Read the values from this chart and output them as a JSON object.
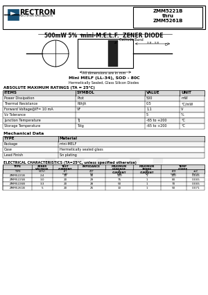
{
  "title_part": "ZMM5221B\nthru\nZMM5261B",
  "main_title": "500mW 5%  mini-M.E.L.F.  ZENER DIODE",
  "company": "RECTRON",
  "company_sub": "RECTIFIER SPECIALISTS",
  "package_type": "Mini MELF (LL-34), SOD - 80C",
  "package_sub": "Hermetically Sealed, Glass Silicon Diodes",
  "abs_max_title": "ABSOLUTE MAXIMUM RATINGS (TA = 25°C)",
  "abs_max_headers": [
    "ITEMS",
    "SYMBOL",
    "VALUE",
    "UNIT"
  ],
  "abs_max_rows": [
    [
      "Power Dissipation",
      "Ptot",
      "500",
      "mW"
    ],
    [
      "Thermal Resistance",
      "RthJA",
      "0.5",
      "°C/mW"
    ],
    [
      "Forward Voltage@IF= 10 mA",
      "VF",
      "1.1",
      "V"
    ],
    [
      "Vz Tolerance",
      "",
      "5",
      "%"
    ],
    [
      "Junction Temperature",
      "TJ",
      "-65 to +200",
      "°C"
    ],
    [
      "Storage Temperature",
      "Tstg",
      "-65 to +200",
      "°C"
    ]
  ],
  "mech_title": "Mechanical Data",
  "mech_rows": [
    [
      "Package",
      "mini-MELF"
    ],
    [
      "Case",
      "Hermetically sealed glass"
    ],
    [
      "Lead Finish",
      "Sn plating"
    ]
  ],
  "elec_title": "ELECTRICAL CHARACTERISTICS (TA=25°C, unless specified otherwise)",
  "elec_rows": [
    [
      "ZMM5221B",
      "2.4",
      "20",
      "30",
      "100",
      "1",
      "100",
      "0.065"
    ],
    [
      "ZMM5225B",
      "3.0",
      "20",
      "29",
      "75",
      "1",
      "80",
      "0.065"
    ],
    [
      "ZMM5226B",
      "3.3",
      "20",
      "28",
      "50",
      "1",
      "70",
      "0.065"
    ],
    [
      "ZMM5261B",
      "5",
      "20",
      "25",
      "10",
      "1",
      "50",
      "0.071"
    ]
  ],
  "bg_color": "#ffffff",
  "logo_blue": "#1a5276"
}
